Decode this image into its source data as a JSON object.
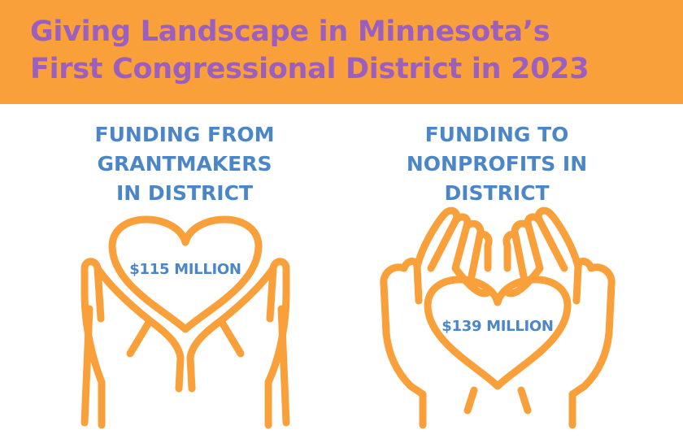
{
  "title": {
    "line1": "Giving Landscape in Minnesota’s",
    "line2": "First Congressional District in 2023"
  },
  "left": {
    "label_lines": [
      "FUNDING FROM",
      "GRANTMAKERS",
      "IN DISTRICT"
    ],
    "amount": "$115 MILLION",
    "icon": "hands-holding-heart-icon"
  },
  "right": {
    "label_lines": [
      "FUNDING TO",
      "NONPROFITS IN",
      "DISTRICT"
    ],
    "amount": "$139 MILLION",
    "icon": "cupped-hands-heart-icon"
  },
  "colors": {
    "header_bg": "#f9a03a",
    "title": "#9b5fc0",
    "label": "#4a86c8",
    "icon_stroke": "#f9a03a"
  }
}
